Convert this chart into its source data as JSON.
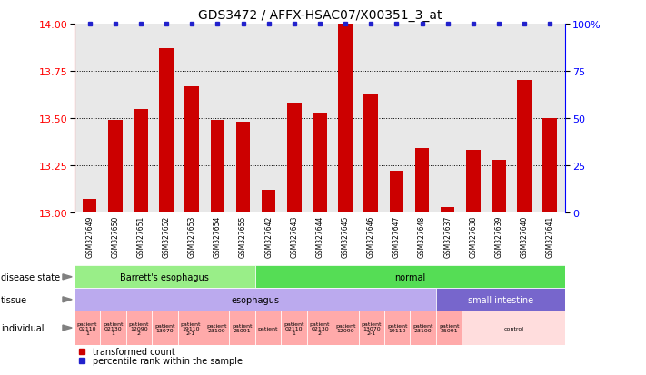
{
  "title": "GDS3472 / AFFX-HSAC07/X00351_3_at",
  "samples": [
    "GSM327649",
    "GSM327650",
    "GSM327651",
    "GSM327652",
    "GSM327653",
    "GSM327654",
    "GSM327655",
    "GSM327642",
    "GSM327643",
    "GSM327644",
    "GSM327645",
    "GSM327646",
    "GSM327647",
    "GSM327648",
    "GSM327637",
    "GSM327638",
    "GSM327639",
    "GSM327640",
    "GSM327641"
  ],
  "bar_values": [
    13.07,
    13.49,
    13.55,
    13.87,
    13.67,
    13.49,
    13.48,
    13.12,
    13.58,
    13.53,
    14.0,
    13.63,
    13.22,
    13.34,
    13.03,
    13.33,
    13.28,
    13.7,
    13.5
  ],
  "percentile_values": [
    100,
    100,
    100,
    100,
    100,
    100,
    100,
    100,
    100,
    100,
    100,
    100,
    100,
    100,
    100,
    100,
    100,
    100,
    100
  ],
  "ylim_left": [
    13.0,
    14.0
  ],
  "ylim_right": [
    0,
    100
  ],
  "yticks_left": [
    13.0,
    13.25,
    13.5,
    13.75,
    14.0
  ],
  "yticks_right": [
    0,
    25,
    50,
    75,
    100
  ],
  "bar_color": "#cc0000",
  "percentile_color": "#2222cc",
  "plot_bg_color": "#e8e8e8",
  "background_color": "#ffffff",
  "disease_state_rows": [
    {
      "label": "Barrett's esophagus",
      "start": 0,
      "end": 6,
      "color": "#99ee88"
    },
    {
      "label": "normal",
      "start": 7,
      "end": 18,
      "color": "#55dd55"
    }
  ],
  "tissue_rows": [
    {
      "label": "esophagus",
      "start": 0,
      "end": 13,
      "color": "#bbaaee",
      "text_color": "#000000"
    },
    {
      "label": "small intestine",
      "start": 14,
      "end": 18,
      "color": "#7766cc",
      "text_color": "#ffffff"
    }
  ],
  "individual_groups": [
    {
      "label": "patient\n02110\n1",
      "start": 0,
      "end": 0,
      "color": "#ffaaaa"
    },
    {
      "label": "patient\n02130\n1",
      "start": 1,
      "end": 1,
      "color": "#ffaaaa"
    },
    {
      "label": "patient\n12090\n2",
      "start": 2,
      "end": 2,
      "color": "#ffaaaa"
    },
    {
      "label": "patient\n13070",
      "start": 3,
      "end": 3,
      "color": "#ffaaaa"
    },
    {
      "label": "patient\n19110\n2-1",
      "start": 4,
      "end": 4,
      "color": "#ffaaaa"
    },
    {
      "label": "patient\n23100",
      "start": 5,
      "end": 5,
      "color": "#ffaaaa"
    },
    {
      "label": "patient\n25091",
      "start": 6,
      "end": 6,
      "color": "#ffaaaa"
    },
    {
      "label": "patient",
      "start": 7,
      "end": 7,
      "color": "#ffaaaa"
    },
    {
      "label": "patient\n02110\n1",
      "start": 8,
      "end": 8,
      "color": "#ffaaaa"
    },
    {
      "label": "patient\n02130\n2",
      "start": 9,
      "end": 9,
      "color": "#ffaaaa"
    },
    {
      "label": "patient\n12090",
      "start": 10,
      "end": 10,
      "color": "#ffaaaa"
    },
    {
      "label": "patient\n13070\n2-1",
      "start": 11,
      "end": 11,
      "color": "#ffaaaa"
    },
    {
      "label": "patient\n19110",
      "start": 12,
      "end": 12,
      "color": "#ffaaaa"
    },
    {
      "label": "patient\n23100",
      "start": 13,
      "end": 13,
      "color": "#ffaaaa"
    },
    {
      "label": "patient\n25091",
      "start": 14,
      "end": 14,
      "color": "#ffaaaa"
    },
    {
      "label": "control",
      "start": 15,
      "end": 18,
      "color": "#ffdddd"
    }
  ],
  "row_labels": [
    "disease state",
    "tissue",
    "individual"
  ],
  "legend": [
    {
      "color": "#cc0000",
      "label": "transformed count"
    },
    {
      "color": "#2222cc",
      "label": "percentile rank within the sample"
    }
  ],
  "title_fontsize": 10,
  "axis_fontsize": 8,
  "tick_fontsize": 6,
  "label_fontsize": 7
}
